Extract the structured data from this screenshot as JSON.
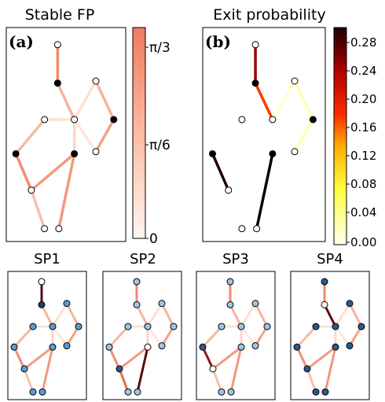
{
  "panel_a": {
    "title": "Stable FP",
    "letter": "(a)",
    "colorbar": {
      "ticks": [
        "π/3",
        "π/6",
        "0"
      ]
    }
  },
  "panel_b": {
    "title": "Exit probability",
    "letter": "(b)",
    "colorbar": {
      "ticks": [
        "0.28",
        "0.24",
        "0.20",
        "0.16",
        "0.12",
        "0.08",
        "0.04",
        "0.00"
      ]
    }
  },
  "small_panels": [
    {
      "title": "SP1"
    },
    {
      "title": "SP2"
    },
    {
      "title": "SP3"
    },
    {
      "title": "SP4"
    }
  ]
}
